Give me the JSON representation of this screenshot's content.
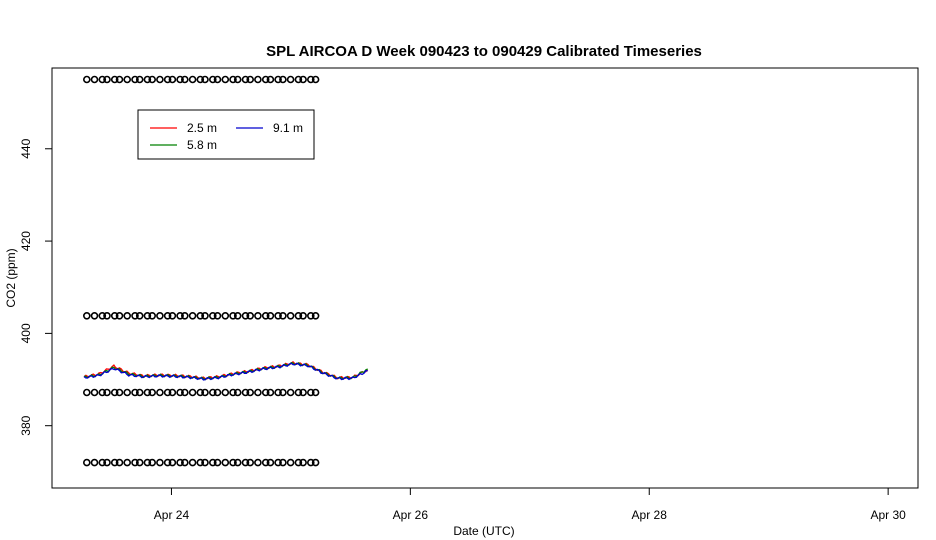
{
  "chart_data": {
    "type": "line",
    "title": "SPL AIRCOA D  Week 090423 to 090429  Calibrated Timeseries",
    "xlabel": "Date (UTC)",
    "ylabel": "CO2 (ppm)",
    "xlim": [
      "2009-04-23 00:00",
      "2009-04-30 06:00"
    ],
    "ylim": [
      366.5,
      457.5
    ],
    "x_ticks": [
      {
        "value": "2009-04-24",
        "label": "Apr 24"
      },
      {
        "value": "2009-04-26",
        "label": "Apr 26"
      },
      {
        "value": "2009-04-28",
        "label": "Apr 28"
      },
      {
        "value": "2009-04-30",
        "label": "Apr 30"
      }
    ],
    "y_ticks": [
      {
        "value": 380,
        "label": "380"
      },
      {
        "value": 400,
        "label": "400"
      },
      {
        "value": 420,
        "label": "420"
      },
      {
        "value": 440,
        "label": "440"
      }
    ],
    "grid": false,
    "legend": {
      "position": "top-left",
      "ncol": 2
    },
    "series": [
      {
        "name": "2.5 m",
        "color": "#ff0000",
        "x": [
          "2009-04-23 00:00",
          "2009-04-23 03:00",
          "2009-04-23 06:00",
          "2009-04-23 09:00",
          "2009-04-23 12:00",
          "2009-04-23 15:00",
          "2009-04-23 18:00",
          "2009-04-23 21:00",
          "2009-04-24 00:00",
          "2009-04-24 03:00",
          "2009-04-24 06:00",
          "2009-04-24 09:00",
          "2009-04-24 12:00",
          "2009-04-24 15:00",
          "2009-04-24 18:00",
          "2009-04-24 21:00",
          "2009-04-25 00:00",
          "2009-04-25 03:00",
          "2009-04-25 06:00",
          "2009-04-25 09:00"
        ],
        "values": [
          390.6,
          391.2,
          392.9,
          391.4,
          390.8,
          391.0,
          390.9,
          390.7,
          390.3,
          390.6,
          391.3,
          391.8,
          392.5,
          392.9,
          393.6,
          393.2,
          391.6,
          390.4,
          390.5,
          392.1
        ]
      },
      {
        "name": "5.8 m",
        "color": "#008000",
        "x": [
          "2009-04-23 00:00",
          "2009-04-23 03:00",
          "2009-04-23 06:00",
          "2009-04-23 09:00",
          "2009-04-23 12:00",
          "2009-04-23 15:00",
          "2009-04-23 18:00",
          "2009-04-23 21:00",
          "2009-04-24 00:00",
          "2009-04-24 03:00",
          "2009-04-24 06:00",
          "2009-04-24 09:00",
          "2009-04-24 12:00",
          "2009-04-24 15:00",
          "2009-04-24 18:00",
          "2009-04-24 21:00",
          "2009-04-25 00:00",
          "2009-04-25 03:00",
          "2009-04-25 06:00",
          "2009-04-25 09:00"
        ],
        "values": [
          390.5,
          391.0,
          392.6,
          391.2,
          390.7,
          390.9,
          390.8,
          390.6,
          390.2,
          390.5,
          391.2,
          391.7,
          392.4,
          392.8,
          393.5,
          393.1,
          391.5,
          390.3,
          390.4,
          392.3
        ]
      },
      {
        "name": "9.1 m",
        "color": "#0000cd",
        "x": [
          "2009-04-23 00:00",
          "2009-04-23 03:00",
          "2009-04-23 06:00",
          "2009-04-23 09:00",
          "2009-04-23 12:00",
          "2009-04-23 15:00",
          "2009-04-23 18:00",
          "2009-04-23 21:00",
          "2009-04-24 00:00",
          "2009-04-24 03:00",
          "2009-04-24 06:00",
          "2009-04-24 09:00",
          "2009-04-24 12:00",
          "2009-04-24 15:00",
          "2009-04-24 18:00",
          "2009-04-24 21:00",
          "2009-04-25 00:00",
          "2009-04-25 03:00",
          "2009-04-25 06:00",
          "2009-04-25 09:00"
        ],
        "values": [
          390.4,
          390.9,
          392.4,
          391.0,
          390.6,
          390.8,
          390.7,
          390.5,
          390.1,
          390.4,
          391.1,
          391.6,
          392.3,
          392.7,
          393.4,
          393.0,
          391.4,
          390.2,
          390.3,
          391.9
        ]
      }
    ],
    "reference_points": [
      {
        "level": 372.0,
        "x_start": "2009-04-23 00:00",
        "x_end": "2009-04-25 06:00"
      },
      {
        "level": 387.2,
        "x_start": "2009-04-23 00:00",
        "x_end": "2009-04-25 06:00"
      },
      {
        "level": 403.8,
        "x_start": "2009-04-23 00:00",
        "x_end": "2009-04-25 06:00"
      },
      {
        "level": 455.0,
        "x_start": "2009-04-23 00:00",
        "x_end": "2009-04-25 06:00"
      }
    ]
  }
}
